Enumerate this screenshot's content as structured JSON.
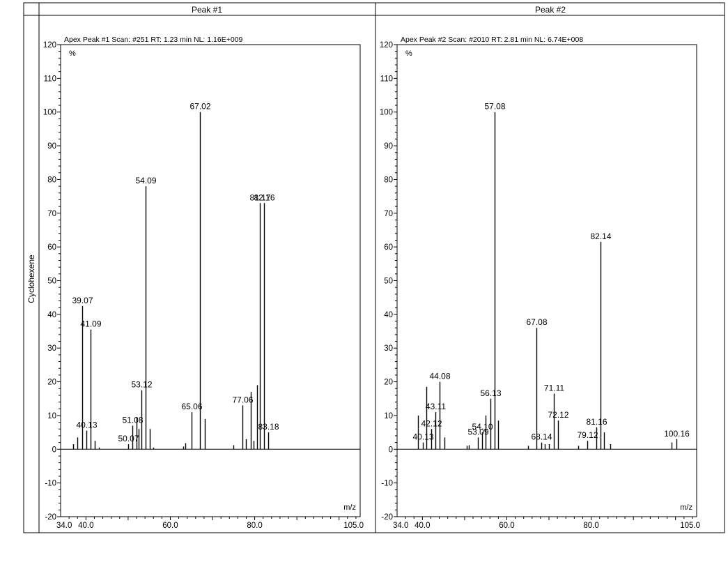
{
  "row_label": "Cyclohexene",
  "chart_data": [
    {
      "type": "bar",
      "panel_title": "Peak #1",
      "title": "Apex Peak #1 Scan: #251  RT: 1.23 min NL: 1.16E+009",
      "ylabel": "%",
      "xlabel": "m/z",
      "xlim": [
        34.0,
        105.0
      ],
      "ylim": [
        -20,
        120
      ],
      "x_ticks": [
        "34.0",
        "40.0",
        "60.0",
        "80.0",
        "105.0"
      ],
      "y_ticks": [
        "-20",
        "-10",
        "0",
        "10",
        "20",
        "30",
        "40",
        "50",
        "60",
        "70",
        "80",
        "90",
        "100",
        "110",
        "120"
      ],
      "peaks": [
        {
          "mz": 37.0,
          "intensity": 1.5
        },
        {
          "mz": 38.0,
          "intensity": 3.5
        },
        {
          "mz": 39.07,
          "intensity": 42.5,
          "label": "39.07"
        },
        {
          "mz": 40.13,
          "intensity": 5.5,
          "label": "40.13"
        },
        {
          "mz": 41.09,
          "intensity": 35.5,
          "label": "41.09"
        },
        {
          "mz": 42.1,
          "intensity": 2.5
        },
        {
          "mz": 43.0,
          "intensity": 0.5
        },
        {
          "mz": 50.07,
          "intensity": 1.5,
          "label": "50.07"
        },
        {
          "mz": 51.08,
          "intensity": 7.0,
          "label": "51.08"
        },
        {
          "mz": 52.0,
          "intensity": 9.5
        },
        {
          "mz": 52.5,
          "intensity": 6.0
        },
        {
          "mz": 53.12,
          "intensity": 17.5,
          "label": "53.12"
        },
        {
          "mz": 54.09,
          "intensity": 78.0,
          "label": "54.09"
        },
        {
          "mz": 55.2,
          "intensity": 6.0
        },
        {
          "mz": 56.0,
          "intensity": 0.5
        },
        {
          "mz": 63.0,
          "intensity": 0.8
        },
        {
          "mz": 63.5,
          "intensity": 1.8
        },
        {
          "mz": 65.06,
          "intensity": 11.0,
          "label": "65.06"
        },
        {
          "mz": 67.02,
          "intensity": 100.0,
          "label": "67.02"
        },
        {
          "mz": 68.1,
          "intensity": 9.0
        },
        {
          "mz": 75.0,
          "intensity": 1.2
        },
        {
          "mz": 77.06,
          "intensity": 13.0,
          "label": "77.06"
        },
        {
          "mz": 78.0,
          "intensity": 3.0
        },
        {
          "mz": 79.0,
          "intensity": 17.0
        },
        {
          "mz": 79.7,
          "intensity": 2.5
        },
        {
          "mz": 80.5,
          "intensity": 19.0
        },
        {
          "mz": 81.17,
          "intensity": 73.0,
          "label": "81.17"
        },
        {
          "mz": 82.16,
          "intensity": 73.0,
          "label": "82.16"
        },
        {
          "mz": 83.18,
          "intensity": 5.0,
          "label": "83.18"
        }
      ]
    },
    {
      "type": "bar",
      "panel_title": "Peak #2",
      "title": "Apex Peak #2 Scan: #2010  RT: 2.81 min NL: 6.74E+008",
      "ylabel": "%",
      "xlabel": "m/z",
      "xlim": [
        34.0,
        105.0
      ],
      "ylim": [
        -20,
        120
      ],
      "x_ticks": [
        "34.0",
        "40.0",
        "60.0",
        "80.0",
        "105.0"
      ],
      "y_ticks": [
        "-20",
        "-10",
        "0",
        "10",
        "20",
        "30",
        "40",
        "50",
        "60",
        "70",
        "80",
        "90",
        "100",
        "110",
        "120"
      ],
      "peaks": [
        {
          "mz": 39.0,
          "intensity": 10.0
        },
        {
          "mz": 40.13,
          "intensity": 2.0,
          "label": "40.13"
        },
        {
          "mz": 41.0,
          "intensity": 18.5
        },
        {
          "mz": 42.12,
          "intensity": 6.0,
          "label": "42.12"
        },
        {
          "mz": 43.11,
          "intensity": 11.0,
          "label": "43.11"
        },
        {
          "mz": 44.08,
          "intensity": 20.0,
          "label": "44.08"
        },
        {
          "mz": 45.2,
          "intensity": 3.5
        },
        {
          "mz": 50.5,
          "intensity": 1.0
        },
        {
          "mz": 51.0,
          "intensity": 1.2
        },
        {
          "mz": 53.09,
          "intensity": 3.5,
          "label": "53.09"
        },
        {
          "mz": 54.1,
          "intensity": 5.0,
          "label": "54.10"
        },
        {
          "mz": 55.0,
          "intensity": 10.0
        },
        {
          "mz": 56.13,
          "intensity": 15.0,
          "label": "56.13"
        },
        {
          "mz": 57.08,
          "intensity": 100.0,
          "label": "57.08"
        },
        {
          "mz": 58.0,
          "intensity": 8.5
        },
        {
          "mz": 65.0,
          "intensity": 1.0
        },
        {
          "mz": 67.08,
          "intensity": 36.0,
          "label": "67.08"
        },
        {
          "mz": 68.14,
          "intensity": 2.0,
          "label": "68.14"
        },
        {
          "mz": 69.0,
          "intensity": 1.5
        },
        {
          "mz": 70.0,
          "intensity": 1.5
        },
        {
          "mz": 71.11,
          "intensity": 16.5,
          "label": "71.11"
        },
        {
          "mz": 72.12,
          "intensity": 8.5,
          "label": "72.12"
        },
        {
          "mz": 77.0,
          "intensity": 1.0
        },
        {
          "mz": 79.12,
          "intensity": 2.5,
          "label": "79.12"
        },
        {
          "mz": 81.16,
          "intensity": 6.5,
          "label": "81.16"
        },
        {
          "mz": 82.14,
          "intensity": 61.5,
          "label": "82.14"
        },
        {
          "mz": 83.1,
          "intensity": 5.0
        },
        {
          "mz": 84.5,
          "intensity": 1.5
        },
        {
          "mz": 99.0,
          "intensity": 2.0
        },
        {
          "mz": 100.16,
          "intensity": 3.0,
          "label": "100.16"
        }
      ]
    }
  ]
}
